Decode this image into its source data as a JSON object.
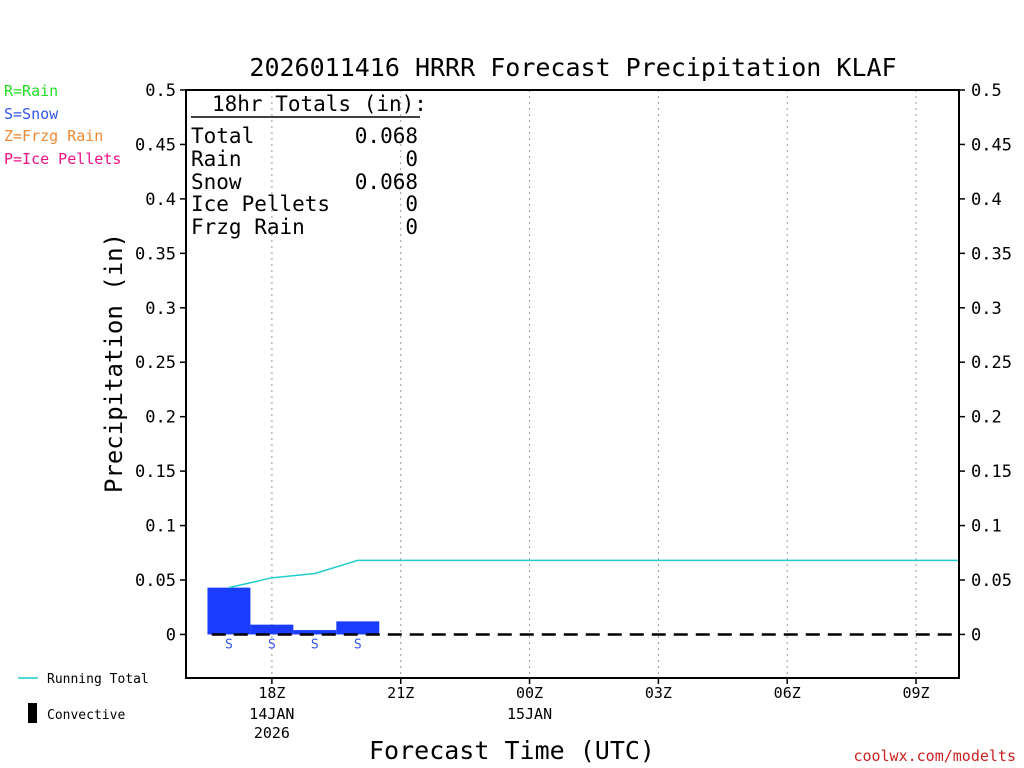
{
  "chart_data": {
    "type": "bar",
    "title": "2026011416 HRRR Forecast Precipitation KLAF",
    "xlabel": "Forecast Time (UTC)",
    "ylabel": "Precipitation (in)",
    "ylim": [
      -0.04,
      0.5
    ],
    "y_ticks": [
      "0",
      "0.05",
      "0.1",
      "0.15",
      "0.2",
      "0.25",
      "0.3",
      "0.35",
      "0.4",
      "0.45",
      "0.5"
    ],
    "x_hours_range": [
      16,
      34
    ],
    "x_ticks": [
      {
        "hour": 18,
        "label": "18Z",
        "label2": "14JAN",
        "label3": "2026"
      },
      {
        "hour": 21,
        "label": "21Z",
        "label2": "",
        "label3": ""
      },
      {
        "hour": 24,
        "label": "00Z",
        "label2": "15JAN",
        "label3": ""
      },
      {
        "hour": 27,
        "label": "03Z",
        "label2": "",
        "label3": ""
      },
      {
        "hour": 30,
        "label": "06Z",
        "label2": "",
        "label3": ""
      },
      {
        "hour": 33,
        "label": "09Z",
        "label2": "",
        "label3": ""
      }
    ],
    "grid": "vertical dotted at labeled hours",
    "series": [
      {
        "name": "Hourly Precipitation",
        "color": "#1a3cff",
        "hours": [
          17,
          18,
          19,
          20
        ],
        "values": [
          0.043,
          0.009,
          0.004,
          0.012
        ],
        "types": [
          "S",
          "S",
          "S",
          "S"
        ]
      },
      {
        "name": "Running Total",
        "color": "#22cccc",
        "hours": [
          17,
          18,
          19,
          20,
          21,
          22,
          23,
          24,
          25,
          26,
          27,
          28,
          29,
          30,
          31,
          32,
          33,
          34
        ],
        "values": [
          0.043,
          0.052,
          0.056,
          0.068,
          0.068,
          0.068,
          0.068,
          0.068,
          0.068,
          0.068,
          0.068,
          0.068,
          0.068,
          0.068,
          0.068,
          0.068,
          0.068,
          0.068
        ]
      }
    ],
    "convective_zero_line_hours": [
      16.6,
      34
    ]
  },
  "totals_box": {
    "header": "18hr Totals (in):",
    "rows": [
      {
        "label": "Total",
        "value": "0.068"
      },
      {
        "label": "Rain",
        "value": "0"
      },
      {
        "label": "Snow",
        "value": "0.068"
      },
      {
        "label": "Ice Pellets",
        "value": "0"
      },
      {
        "label": "Frzg Rain",
        "value": "0"
      }
    ]
  },
  "type_legend": [
    {
      "text": "R=Rain",
      "color": "#22dd22"
    },
    {
      "text": "S=Snow",
      "color": "#3355ee"
    },
    {
      "text": "Z=Frzg Rain",
      "color": "#ee8833"
    },
    {
      "text": "P=Ice Pellets",
      "color": "#ee1188"
    }
  ],
  "bottom_legend": {
    "running_total": "Running Total",
    "convective": "Convective"
  },
  "credit": "coolwx.com/modelts",
  "credit_color": "#cc2222"
}
